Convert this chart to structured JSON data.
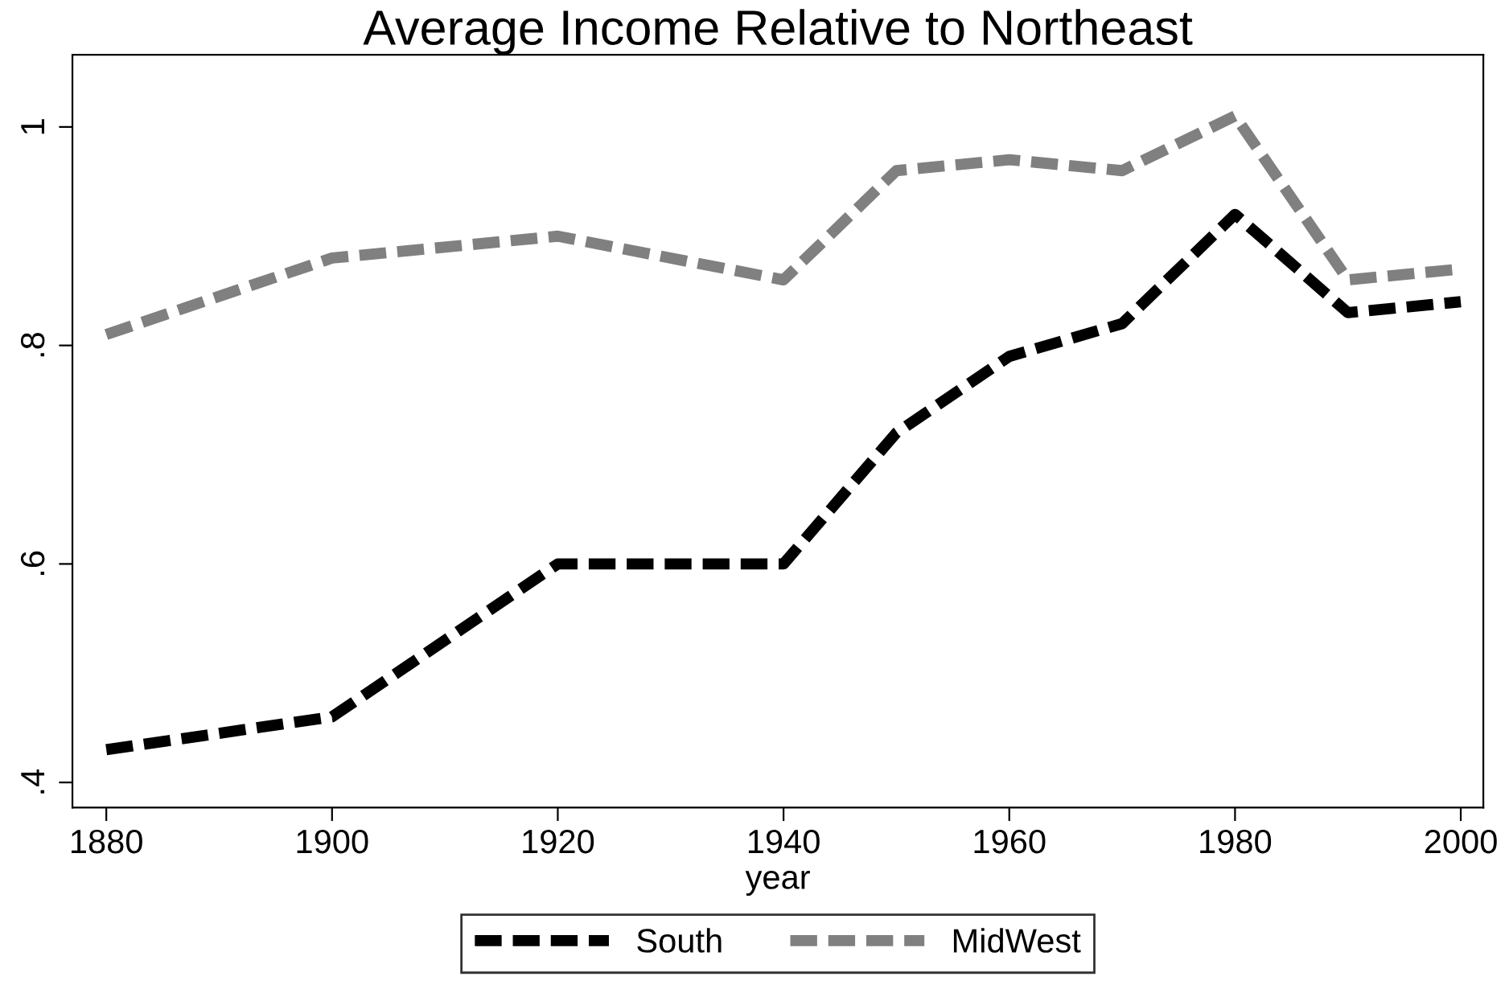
{
  "chart_data": {
    "type": "line",
    "title": "Average Income Relative to Northeast",
    "xlabel": "year",
    "x": [
      1880,
      1900,
      1920,
      1940,
      1950,
      1960,
      1970,
      1980,
      1990,
      2000
    ],
    "series": [
      {
        "name": "South",
        "color": "#000000",
        "values": [
          0.43,
          0.46,
          0.6,
          0.6,
          0.72,
          0.79,
          0.82,
          0.92,
          0.83,
          0.84
        ]
      },
      {
        "name": "MidWest",
        "color": "#808080",
        "values": [
          0.81,
          0.88,
          0.9,
          0.86,
          0.96,
          0.97,
          0.96,
          1.01,
          0.86,
          0.87
        ]
      }
    ],
    "xlim": [
      1877,
      2002
    ],
    "ylim": [
      0.377,
      1.066
    ],
    "xticks": [
      1880,
      1900,
      1920,
      1940,
      1960,
      1980,
      2000
    ],
    "yticks": [
      {
        "value": 0.4,
        "label": ".4"
      },
      {
        "value": 0.6,
        "label": ".6"
      },
      {
        "value": 0.8,
        "label": ".8"
      },
      {
        "value": 1,
        "label": "1"
      }
    ],
    "grid": false,
    "legend": "bottom",
    "line_style": "dashed",
    "marker": "none"
  }
}
